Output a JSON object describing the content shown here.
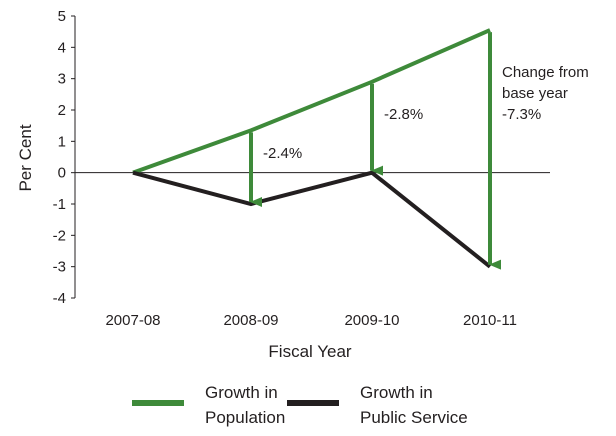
{
  "chart_data": {
    "type": "line",
    "categories": [
      "2007-08",
      "2008-09",
      "2009-10",
      "2010-11"
    ],
    "series": [
      {
        "name": "Growth in Population",
        "color": "#3e8a3a",
        "values": [
          0,
          1.35,
          2.9,
          4.55
        ]
      },
      {
        "name": "Growth in Public Service",
        "color": "#231f20",
        "values": [
          0,
          -1.0,
          0,
          -3.0
        ]
      }
    ],
    "gap_arrows": [
      {
        "category": "2008-09",
        "label": "-2.4%"
      },
      {
        "category": "2009-10",
        "label": "-2.8%"
      },
      {
        "category": "2010-11",
        "label": "Change from base year -7.3%"
      }
    ],
    "annotation_lines": [
      "Change from",
      "base year",
      "-7.3%"
    ],
    "xlabel": "Fiscal Year",
    "ylabel": "Per Cent",
    "ylim": [
      -4,
      5
    ],
    "yticks": [
      5,
      4,
      3,
      2,
      1,
      0,
      -1,
      -2,
      -3,
      -4
    ],
    "grid": false,
    "legend_position": "bottom",
    "legend": [
      {
        "line1": "Growth in",
        "line2": "Population",
        "color": "#3e8a3a"
      },
      {
        "line1": "Growth in",
        "line2": "Public Service",
        "color": "#231f20"
      }
    ]
  }
}
